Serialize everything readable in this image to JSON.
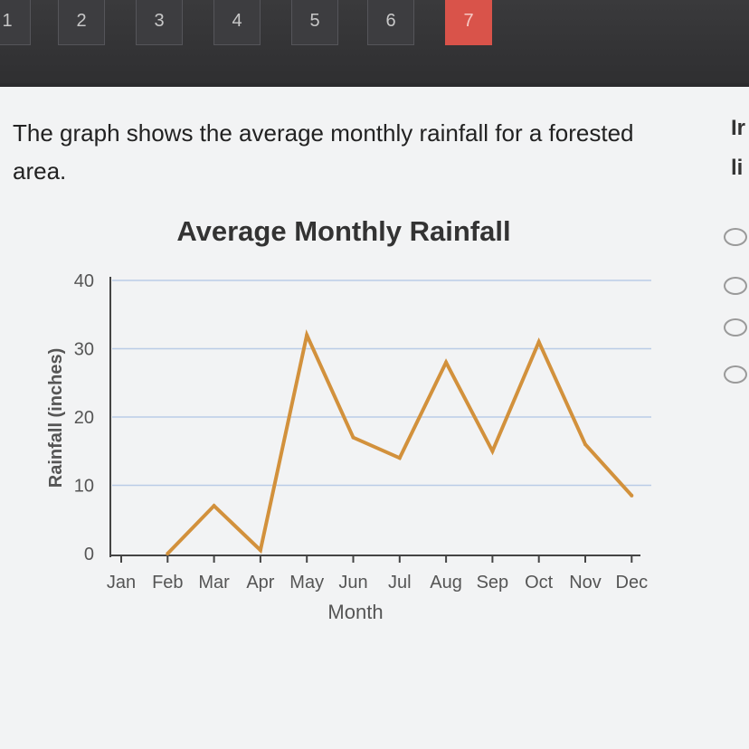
{
  "nav": {
    "tabs": [
      {
        "label": "1"
      },
      {
        "label": "2"
      },
      {
        "label": "3"
      },
      {
        "label": "4"
      },
      {
        "label": "5"
      },
      {
        "label": "6"
      },
      {
        "label": "7",
        "active": true
      }
    ]
  },
  "question": {
    "text": "The graph shows the average monthly rainfall for a forested area."
  },
  "right_panel": {
    "line1": "Ir",
    "line2": "li",
    "options": [
      "C",
      "C",
      "O",
      "O"
    ]
  },
  "colors": {
    "line": "#d2913c",
    "grid": "#b9cce6",
    "active_tab": "#d9534a"
  },
  "chart_data": {
    "type": "line",
    "title": "Average Monthly Rainfall",
    "xlabel": "Month",
    "ylabel": "Rainfall (inches)",
    "categories": [
      "Jan",
      "Feb",
      "Mar",
      "Apr",
      "May",
      "Jun",
      "Jul",
      "Aug",
      "Sep",
      "Oct",
      "Nov",
      "Dec"
    ],
    "values": [
      null,
      0,
      7,
      0.5,
      32,
      17,
      14,
      28,
      15,
      31,
      16,
      8.5
    ],
    "ylim": [
      0,
      40
    ],
    "yticks": [
      0,
      10,
      20,
      30,
      40
    ],
    "grid": true
  }
}
